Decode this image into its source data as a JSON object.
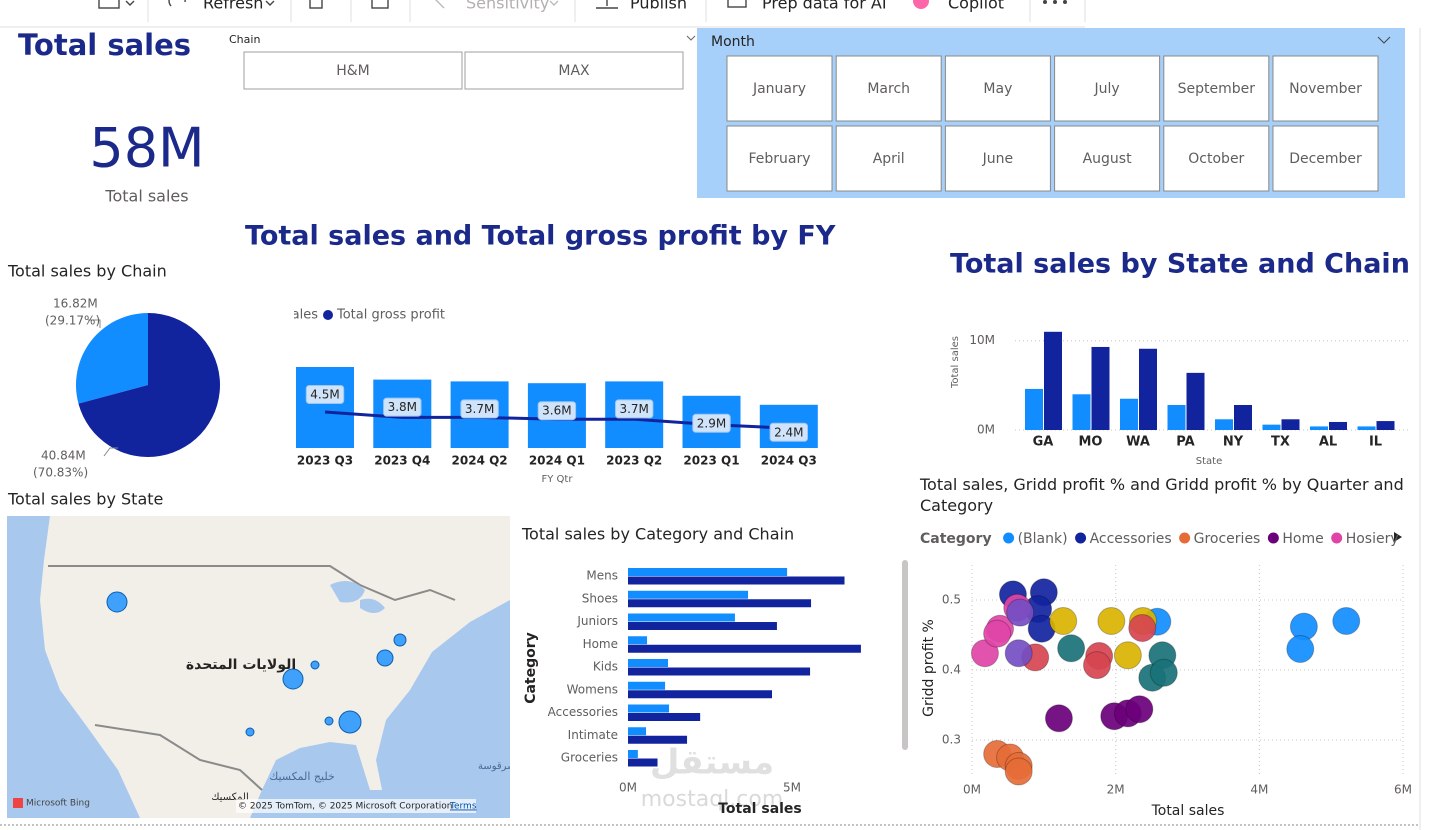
{
  "toolbar": {
    "items": [
      "Refresh",
      "Sensitivity",
      "Publish",
      "Prep data for AI",
      "Copilot"
    ]
  },
  "kpi": {
    "title": "Total sales",
    "value": "58M",
    "label": "Total sales"
  },
  "chain_slicer": {
    "title": "Chain",
    "items": [
      "H&M",
      "MAX"
    ]
  },
  "month_slicer": {
    "title": "Month",
    "items": [
      "January",
      "March",
      "May",
      "July",
      "September",
      "November",
      "February",
      "April",
      "June",
      "August",
      "October",
      "December"
    ]
  },
  "map": {
    "title": "Total sales by State",
    "country": "الولايات المتحدة",
    "gulf": "خليج المكسيك",
    "mexico": "المكسيك",
    "sea": "بحر سرقوسة",
    "provider": "Microsoft Bing",
    "attribution": "© 2025 TomTom, © 2025 Microsoft Corporation",
    "terms": "Terms"
  },
  "watermark": {
    "arabic": "مستقل",
    "latin": "mostaql.com"
  },
  "chart_data": [
    {
      "type": "pie",
      "title": "Total sales by Chain",
      "values": [
        16.82,
        40.84
      ],
      "value_labels": [
        "16.82M",
        "40.84M"
      ],
      "percent_labels": [
        "(29.17%)",
        "(70.83%)"
      ],
      "colors": [
        "#118dff",
        "#12239e"
      ]
    },
    {
      "type": "combo",
      "title": "Total sales and Total gross profit by FY",
      "categories": [
        "2023 Q3",
        "2023 Q4",
        "2024 Q2",
        "2024 Q1",
        "2023 Q2",
        "2023 Q1",
        "2024 Q3"
      ],
      "x_label": "FY Qtr",
      "series": [
        {
          "name": "Total sales",
          "color": "#118dff",
          "values": [
            4.5,
            3.8,
            3.7,
            3.6,
            3.7,
            2.9,
            2.4
          ],
          "value_labels": [
            "4.5M",
            "3.8M",
            "3.7M",
            "3.6M",
            "3.7M",
            "2.9M",
            "2.4M"
          ]
        },
        {
          "name": "Total gross profit",
          "color": "#12239e",
          "values": [
            2.0,
            1.7,
            1.7,
            1.6,
            1.6,
            1.3,
            1.1
          ]
        }
      ]
    },
    {
      "type": "bar",
      "title": "Total sales by State and Chain",
      "categories": [
        "GA",
        "MO",
        "WA",
        "PA",
        "NY",
        "TX",
        "AL",
        "IL"
      ],
      "y_label": "Total sales",
      "x_label": "State",
      "ylim": [
        0,
        11.2
      ],
      "yticks": [
        {
          "value": 0,
          "label": "0M"
        },
        {
          "value": 10,
          "label": "10M"
        }
      ],
      "grid": true,
      "series": [
        {
          "color": "#118dff",
          "values": [
            4.6,
            4.0,
            3.5,
            2.8,
            1.2,
            0.6,
            0.4,
            0.4
          ]
        },
        {
          "color": "#12239e",
          "values": [
            11.0,
            9.3,
            9.1,
            6.4,
            2.8,
            1.2,
            0.9,
            1.0
          ]
        }
      ]
    },
    {
      "type": "hbar",
      "title": "Total sales by Category and Chain",
      "categories": [
        "Mens",
        "Shoes",
        "Juniors",
        "Home",
        "Kids",
        "Womens",
        "Accessories",
        "Intimate",
        "Groceries"
      ],
      "y_label": "Category",
      "x_label": "Total sales",
      "xlim": [
        0,
        8.2
      ],
      "xticks": [
        {
          "value": 0,
          "label": "0M"
        },
        {
          "value": 5,
          "label": "5M"
        }
      ],
      "series": [
        {
          "color": "#118dff",
          "values": [
            4.85,
            3.66,
            3.26,
            0.58,
            1.22,
            1.13,
            1.25,
            0.55,
            0.3
          ]
        },
        {
          "color": "#12239e",
          "values": [
            6.6,
            5.58,
            4.54,
            7.1,
            5.55,
            4.39,
            2.2,
            1.8,
            0.9
          ]
        }
      ]
    },
    {
      "type": "scatter",
      "title": "Total sales, Gridd profit % and Gridd profit % by Quarter and Category",
      "legend_title": "Category",
      "x_label": "Total sales",
      "y_label": "Gridd profit %",
      "xlim": [
        0,
        6
      ],
      "xticks": [
        {
          "value": 0,
          "label": "0M"
        },
        {
          "value": 2,
          "label": "2M"
        },
        {
          "value": 4,
          "label": "4M"
        },
        {
          "value": 6,
          "label": "6M"
        }
      ],
      "ylim": [
        0.25,
        0.55
      ],
      "yticks": [
        0.3,
        0.4,
        0.5
      ],
      "grid": true,
      "series": [
        {
          "name": "(Blank)",
          "color": "#118dff",
          "x": [
            2.58,
            4.62,
            4.57,
            5.21
          ],
          "values": [
            0.469,
            0.462,
            0.43,
            0.47
          ]
        },
        {
          "name": "Accessories",
          "color": "#12239e",
          "x": [
            0.57,
            1.0,
            0.92,
            0.97
          ],
          "values": [
            0.508,
            0.511,
            0.487,
            0.459
          ]
        },
        {
          "name": "Groceries",
          "color": "#e66c37",
          "x": [
            0.35,
            0.53,
            0.65,
            0.65
          ],
          "values": [
            0.28,
            0.275,
            0.263,
            0.255
          ]
        },
        {
          "name": "Home",
          "color": "#6b007b",
          "x": [
            1.21,
            1.98,
            2.17,
            2.33
          ],
          "values": [
            0.331,
            0.334,
            0.338,
            0.344
          ]
        },
        {
          "name": "Hosiery",
          "color": "#e044a7",
          "x": [
            0.18,
            0.39,
            0.35,
            0.63
          ],
          "values": [
            0.424,
            0.459,
            0.452,
            0.489
          ]
        },
        {
          "color": "#d9b300",
          "x": [
            1.27,
            1.94,
            2.38,
            2.17
          ],
          "values": [
            0.47,
            0.47,
            0.47,
            0.421
          ]
        },
        {
          "color": "#197278",
          "x": [
            1.38,
            2.65,
            2.51,
            2.67
          ],
          "values": [
            0.431,
            0.421,
            0.389,
            0.396
          ]
        },
        {
          "color": "#d64550",
          "x": [
            0.88,
            1.77,
            1.74,
            2.37
          ],
          "values": [
            0.418,
            0.42,
            0.407,
            0.46
          ]
        },
        {
          "color": "#744ec2",
          "x": [
            0.65,
            0.67
          ],
          "values": [
            0.424,
            0.482
          ]
        }
      ]
    }
  ]
}
